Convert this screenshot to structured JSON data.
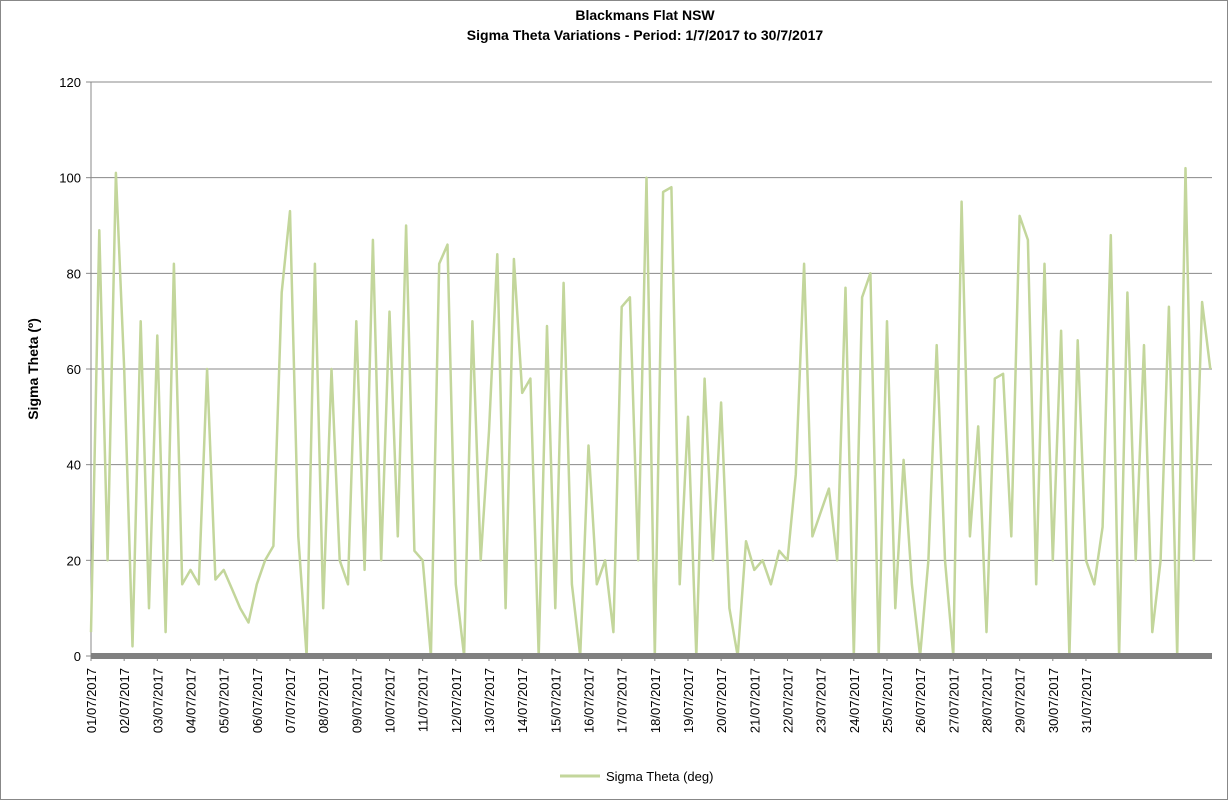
{
  "chart_data": {
    "type": "line",
    "title": "Blackmans Flat NSW",
    "subtitle": "Sigma Theta Variations - Period: 1/7/2017 to 30/7/2017",
    "y_label": "Sigma Theta (º)",
    "xlim": [
      0,
      33.8
    ],
    "xticks": [
      {
        "value": 0,
        "label": "01/07/2017"
      },
      {
        "value": 1,
        "label": "02/07/2017"
      },
      {
        "value": 2,
        "label": "03/07/2017"
      },
      {
        "value": 3,
        "label": "04/07/2017"
      },
      {
        "value": 4,
        "label": "05/07/2017"
      },
      {
        "value": 5,
        "label": "06/07/2017"
      },
      {
        "value": 6,
        "label": "07/07/2017"
      },
      {
        "value": 7,
        "label": "08/07/2017"
      },
      {
        "value": 8,
        "label": "09/07/2017"
      },
      {
        "value": 9,
        "label": "10/07/2017"
      },
      {
        "value": 10,
        "label": "11/07/2017"
      },
      {
        "value": 11,
        "label": "12/07/2017"
      },
      {
        "value": 12,
        "label": "13/07/2017"
      },
      {
        "value": 13,
        "label": "14/07/2017"
      },
      {
        "value": 14,
        "label": "15/07/2017"
      },
      {
        "value": 15,
        "label": "16/07/2017"
      },
      {
        "value": 16,
        "label": "17/07/2017"
      },
      {
        "value": 17,
        "label": "18/07/2017"
      },
      {
        "value": 18,
        "label": "19/07/2017"
      },
      {
        "value": 19,
        "label": "20/07/2017"
      },
      {
        "value": 20,
        "label": "21/07/2017"
      },
      {
        "value": 21,
        "label": "22/07/2017"
      },
      {
        "value": 22,
        "label": "23/07/2017"
      },
      {
        "value": 23,
        "label": "24/07/2017"
      },
      {
        "value": 24,
        "label": "25/07/2017"
      },
      {
        "value": 25,
        "label": "26/07/2017"
      },
      {
        "value": 26,
        "label": "27/07/2017"
      },
      {
        "value": 27,
        "label": "28/07/2017"
      },
      {
        "value": 28,
        "label": "29/07/2017"
      },
      {
        "value": 29,
        "label": "30/07/2017"
      },
      {
        "value": 30,
        "label": "31/07/2017"
      }
    ],
    "ylim": [
      0,
      120
    ],
    "yticks": [
      0,
      20,
      40,
      60,
      80,
      100,
      120
    ],
    "grid": true,
    "legend": "bottom",
    "x": [
      0,
      0.25,
      0.5,
      0.75,
      1,
      1.25,
      1.5,
      1.75,
      2,
      2.25,
      2.5,
      2.75,
      3,
      3.25,
      3.5,
      3.75,
      4,
      4.25,
      4.5,
      4.75,
      5,
      5.25,
      5.5,
      5.75,
      6,
      6.25,
      6.5,
      6.75,
      7,
      7.25,
      7.5,
      7.75,
      8,
      8.25,
      8.5,
      8.75,
      9,
      9.25,
      9.5,
      9.75,
      10,
      10.25,
      10.5,
      10.75,
      11,
      11.25,
      11.5,
      11.75,
      12,
      12.25,
      12.5,
      12.75,
      13,
      13.25,
      13.5,
      13.75,
      14,
      14.25,
      14.5,
      14.75,
      15,
      15.25,
      15.5,
      15.75,
      16,
      16.25,
      16.5,
      16.75,
      17,
      17.25,
      17.5,
      17.75,
      18,
      18.25,
      18.5,
      18.75,
      19,
      19.25,
      19.5,
      19.75,
      20,
      20.25,
      20.5,
      20.75,
      21,
      21.25,
      21.5,
      21.75,
      22,
      22.25,
      22.5,
      22.75,
      23,
      23.25,
      23.5,
      23.75,
      24,
      24.25,
      24.5,
      24.75,
      25,
      25.25,
      25.5,
      25.75,
      26,
      26.25,
      26.5,
      26.75,
      27,
      27.25,
      27.5,
      27.75,
      28,
      28.25,
      28.5,
      28.75,
      29,
      29.25,
      29.5,
      29.75,
      30,
      30.25,
      30.5,
      30.75,
      31,
      31.25,
      31.5,
      31.75,
      32,
      32.25,
      32.5,
      32.75,
      33,
      33.25,
      33.5,
      33.75
    ],
    "series": [
      {
        "name": "Sigma Theta (deg)",
        "color": "#c3d69b",
        "values": [
          5,
          89,
          20,
          101,
          60,
          2,
          70,
          10,
          67,
          5,
          82,
          15,
          18,
          15,
          60,
          16,
          18,
          14,
          10,
          7,
          15,
          20,
          23,
          76,
          93,
          25,
          0,
          82,
          10,
          60,
          20,
          15,
          70,
          18,
          87,
          20,
          72,
          25,
          90,
          22,
          20,
          0,
          82,
          86,
          15,
          0,
          70,
          20,
          47,
          84,
          10,
          83,
          55,
          58,
          0,
          69,
          10,
          78,
          15,
          0,
          44,
          15,
          20,
          5,
          73,
          75,
          20,
          100,
          0,
          97,
          98,
          15,
          50,
          0,
          58,
          20,
          53,
          10,
          0,
          24,
          18,
          20,
          15,
          22,
          20,
          38,
          82,
          25,
          30,
          35,
          20,
          77,
          0,
          75,
          80,
          0,
          70,
          10,
          41,
          15,
          0,
          20,
          65,
          20,
          0,
          95,
          25,
          48,
          5,
          58,
          59,
          25,
          92,
          87,
          15,
          82,
          20,
          68,
          0,
          66,
          20,
          15,
          27,
          88,
          0,
          76,
          20,
          65,
          5,
          20,
          73,
          0,
          102,
          20,
          74,
          60
        ]
      }
    ]
  }
}
